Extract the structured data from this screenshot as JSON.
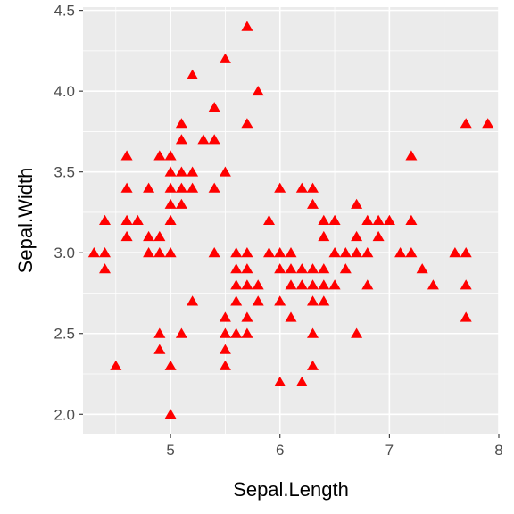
{
  "chart_data": {
    "type": "scatter",
    "xlabel": "Sepal.Length",
    "ylabel": "Sepal.Width",
    "xlim": [
      4.2,
      8.0
    ],
    "ylim": [
      1.88,
      4.52
    ],
    "x_ticks": [
      5,
      6,
      7,
      8
    ],
    "x_tick_labels": [
      "5",
      "6",
      "7",
      "8"
    ],
    "y_ticks": [
      2.0,
      2.5,
      3.0,
      3.5,
      4.0,
      4.5
    ],
    "y_tick_labels": [
      "2.0",
      "2.5",
      "3.0",
      "3.5",
      "4.0",
      "4.5"
    ],
    "grid": true,
    "panel_background": "#ebebeb",
    "grid_color": "#ffffff",
    "marker": "triangle",
    "marker_color": "#ff0000",
    "points": [
      [
        4.3,
        3.0
      ],
      [
        4.4,
        3.0
      ],
      [
        4.4,
        3.2
      ],
      [
        4.4,
        2.9
      ],
      [
        4.5,
        2.3
      ],
      [
        4.6,
        3.6
      ],
      [
        4.6,
        3.4
      ],
      [
        4.6,
        3.2
      ],
      [
        4.6,
        3.1
      ],
      [
        4.7,
        3.2
      ],
      [
        4.8,
        3.4
      ],
      [
        4.8,
        3.1
      ],
      [
        4.8,
        3.0
      ],
      [
        4.9,
        3.6
      ],
      [
        4.9,
        3.1
      ],
      [
        4.9,
        3.0
      ],
      [
        4.9,
        2.5
      ],
      [
        4.9,
        2.4
      ],
      [
        5.0,
        3.6
      ],
      [
        5.0,
        3.5
      ],
      [
        5.0,
        3.4
      ],
      [
        5.0,
        3.3
      ],
      [
        5.0,
        3.2
      ],
      [
        5.0,
        3.0
      ],
      [
        5.0,
        2.3
      ],
      [
        5.0,
        2.0
      ],
      [
        5.1,
        3.8
      ],
      [
        5.1,
        3.7
      ],
      [
        5.1,
        3.5
      ],
      [
        5.1,
        3.4
      ],
      [
        5.1,
        3.3
      ],
      [
        5.1,
        2.5
      ],
      [
        5.2,
        4.1
      ],
      [
        5.2,
        3.5
      ],
      [
        5.2,
        3.4
      ],
      [
        5.2,
        2.7
      ],
      [
        5.3,
        3.7
      ],
      [
        5.4,
        3.9
      ],
      [
        5.4,
        3.7
      ],
      [
        5.4,
        3.4
      ],
      [
        5.4,
        3.0
      ],
      [
        5.5,
        4.2
      ],
      [
        5.5,
        3.5
      ],
      [
        5.5,
        2.6
      ],
      [
        5.5,
        2.5
      ],
      [
        5.5,
        2.4
      ],
      [
        5.5,
        2.3
      ],
      [
        5.6,
        3.0
      ],
      [
        5.6,
        2.9
      ],
      [
        5.6,
        2.8
      ],
      [
        5.6,
        2.7
      ],
      [
        5.6,
        2.5
      ],
      [
        5.7,
        4.4
      ],
      [
        5.7,
        3.8
      ],
      [
        5.7,
        3.0
      ],
      [
        5.7,
        2.9
      ],
      [
        5.7,
        2.8
      ],
      [
        5.7,
        2.6
      ],
      [
        5.7,
        2.5
      ],
      [
        5.8,
        4.0
      ],
      [
        5.8,
        2.8
      ],
      [
        5.8,
        2.7
      ],
      [
        5.9,
        3.2
      ],
      [
        5.9,
        3.0
      ],
      [
        6.0,
        3.4
      ],
      [
        6.0,
        3.0
      ],
      [
        6.0,
        2.9
      ],
      [
        6.0,
        2.7
      ],
      [
        6.0,
        2.2
      ],
      [
        6.1,
        3.0
      ],
      [
        6.1,
        2.9
      ],
      [
        6.1,
        2.8
      ],
      [
        6.1,
        2.6
      ],
      [
        6.2,
        3.4
      ],
      [
        6.2,
        2.9
      ],
      [
        6.2,
        2.8
      ],
      [
        6.2,
        2.2
      ],
      [
        6.3,
        3.4
      ],
      [
        6.3,
        3.3
      ],
      [
        6.3,
        2.9
      ],
      [
        6.3,
        2.8
      ],
      [
        6.3,
        2.7
      ],
      [
        6.3,
        2.5
      ],
      [
        6.3,
        2.3
      ],
      [
        6.4,
        3.2
      ],
      [
        6.4,
        3.1
      ],
      [
        6.4,
        2.9
      ],
      [
        6.4,
        2.8
      ],
      [
        6.4,
        2.7
      ],
      [
        6.5,
        3.2
      ],
      [
        6.5,
        3.0
      ],
      [
        6.5,
        2.8
      ],
      [
        6.6,
        3.0
      ],
      [
        6.6,
        2.9
      ],
      [
        6.7,
        3.3
      ],
      [
        6.7,
        3.1
      ],
      [
        6.7,
        3.0
      ],
      [
        6.7,
        2.5
      ],
      [
        6.8,
        3.2
      ],
      [
        6.8,
        3.0
      ],
      [
        6.8,
        2.8
      ],
      [
        6.9,
        3.2
      ],
      [
        6.9,
        3.1
      ],
      [
        7.0,
        3.2
      ],
      [
        7.1,
        3.0
      ],
      [
        7.2,
        3.6
      ],
      [
        7.2,
        3.2
      ],
      [
        7.2,
        3.0
      ],
      [
        7.3,
        2.9
      ],
      [
        7.4,
        2.8
      ],
      [
        7.6,
        3.0
      ],
      [
        7.7,
        3.8
      ],
      [
        7.7,
        3.0
      ],
      [
        7.7,
        2.8
      ],
      [
        7.7,
        2.6
      ],
      [
        7.9,
        3.8
      ]
    ]
  }
}
